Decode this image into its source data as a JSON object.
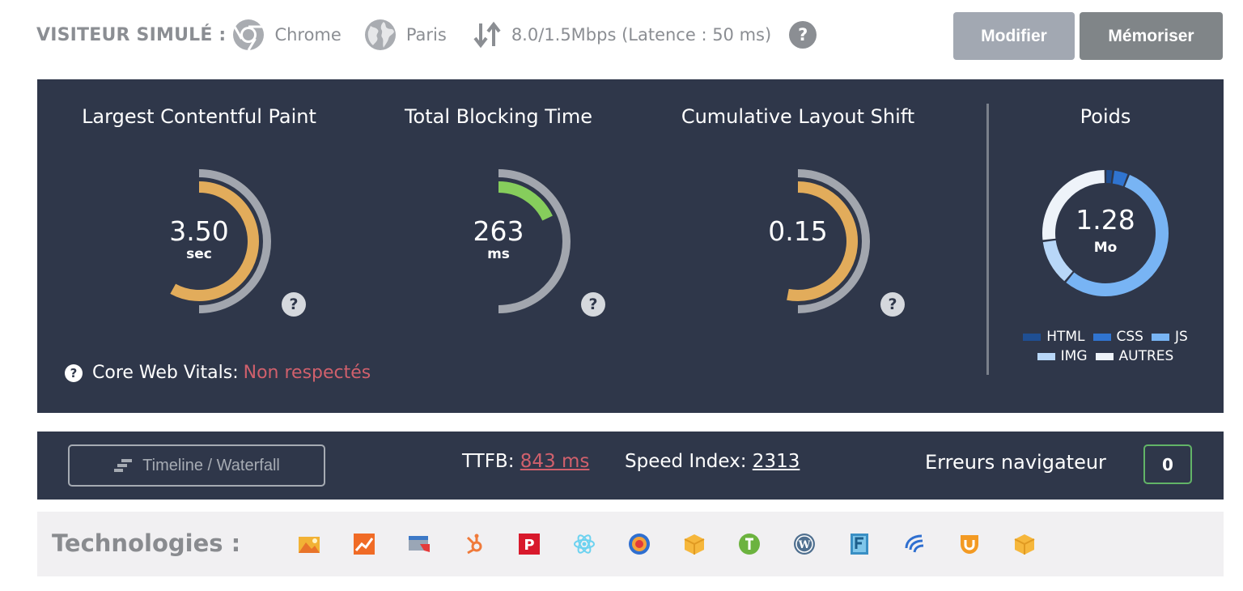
{
  "visitor": {
    "label": "VISITEUR SIMULÉ :",
    "browser": "Chrome",
    "browser_icon": "chrome-icon",
    "location": "Paris",
    "location_icon": "globe-icon",
    "network": "8.0/1.5Mbps (Latence : 50 ms)",
    "network_icon": "up-down-arrows-icon",
    "help": "?"
  },
  "actions": {
    "modify_label": "Modifier",
    "save_label": "Mémoriser"
  },
  "metrics": [
    {
      "title": "Largest Contentful Paint",
      "value": "3.50",
      "unit": "sec",
      "color": "#e2ac5b",
      "fraction": 0.58,
      "help": "?"
    },
    {
      "title": "Total Blocking Time",
      "value": "263",
      "unit": "ms",
      "color": "#86cd5c",
      "fraction": 0.18,
      "help": "?"
    },
    {
      "title": "Cumulative Layout Shift",
      "value": "0.15",
      "unit": "",
      "color": "#e2ac5b",
      "fraction": 0.53,
      "help": "?"
    }
  ],
  "core_web_vitals": {
    "help": "?",
    "label": "Core Web Vitals:",
    "status": "Non respectés",
    "status_color": "#d0606c"
  },
  "weight": {
    "title": "Poids",
    "value": "1.28",
    "unit": "Mo",
    "legend": [
      {
        "name": "HTML",
        "color": "#1f4f93"
      },
      {
        "name": "CSS",
        "color": "#3074d0"
      },
      {
        "name": "JS",
        "color": "#78b4f4"
      },
      {
        "name": "IMG",
        "color": "#b8d7f8"
      },
      {
        "name": "AUTRES",
        "color": "#eef3f9"
      }
    ],
    "segments": [
      {
        "name": "HTML",
        "fraction": 0.02
      },
      {
        "name": "CSS",
        "fraction": 0.04
      },
      {
        "name": "JS",
        "fraction": 0.55
      },
      {
        "name": "IMG",
        "fraction": 0.12
      },
      {
        "name": "AUTRES",
        "fraction": 0.27
      }
    ]
  },
  "summary": {
    "timeline_label": "Timeline / Waterfall",
    "ttfb_label": "TTFB:",
    "ttfb_value": "843 ms",
    "speed_index_label": "Speed Index:",
    "speed_index_value": "2313",
    "errors_label": "Erreurs navigateur",
    "errors_count": "0"
  },
  "technologies": {
    "label": "Technologies :",
    "icons": [
      "landscape-image-icon",
      "analytics-chart-icon",
      "browser-window-icon",
      "hubspot-icon",
      "p-logo-icon",
      "react-atom-icon",
      "target-circle-icon",
      "yellow-box-icon",
      "green-leaf-icon",
      "wordpress-icon",
      "f-logo-icon",
      "wave-logo-icon",
      "orange-shield-icon",
      "yellow-box-icon"
    ]
  }
}
